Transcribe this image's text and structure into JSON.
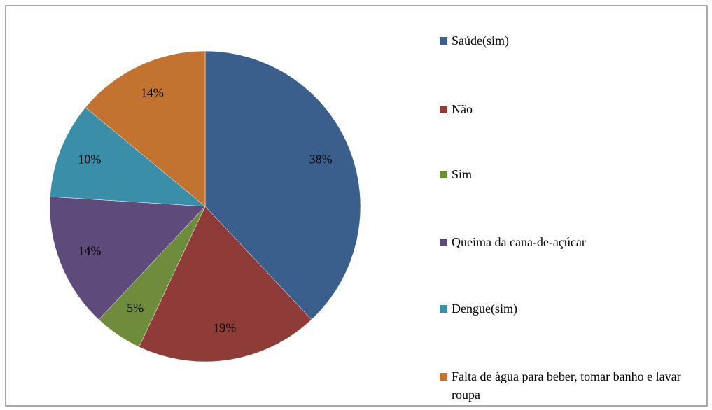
{
  "chart_data": {
    "type": "pie",
    "categories": [
      "Saúde(sim)",
      "Não",
      "Sim",
      "Queima da cana-de-açúcar",
      "Dengue(sim)",
      "Falta de àgua para beber, tomar banho e lavar roupa"
    ],
    "values": [
      38,
      19,
      5,
      14,
      10,
      14
    ],
    "value_labels": [
      "38%",
      "19%",
      "5%",
      "14%",
      "10%",
      "14%"
    ],
    "colors": [
      "#3b5f8d",
      "#8f3c39",
      "#6f8c3c",
      "#5f4a7c",
      "#3a8ea7",
      "#c27330"
    ],
    "legend": "right"
  }
}
